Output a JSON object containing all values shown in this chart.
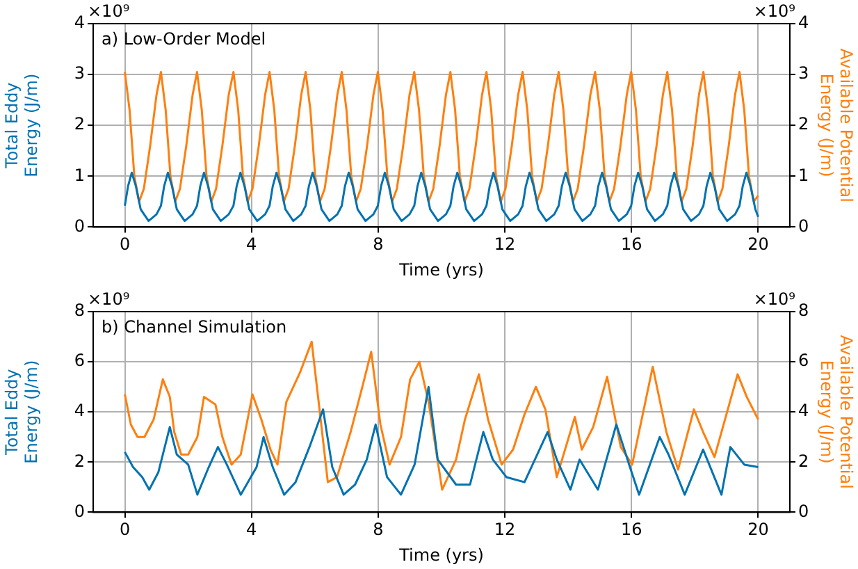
{
  "chart_data": [
    {
      "type": "line",
      "title": "a) Low-Order Model",
      "xlabel": "Time (yrs)",
      "ylabel": "Total Eddy\nEnergy (J/m)",
      "y2label": "Available Potential\nEnergy (J/m)",
      "annotations": [
        "×10⁹",
        "×10⁹"
      ],
      "xlim": [
        -1,
        21
      ],
      "xticks": [
        0,
        4,
        8,
        12,
        16,
        20
      ],
      "ylim": [
        0,
        4
      ],
      "yticks": [
        0,
        1,
        2,
        3,
        4
      ],
      "y2lim": [
        0,
        4
      ],
      "y2ticks": [
        0,
        1,
        2,
        3,
        4
      ],
      "grid": true,
      "legend": false,
      "series": [
        {
          "color": "#0072b2",
          "axis": "y",
          "x": [
            0,
            0.1,
            0.22,
            0.35,
            0.5,
            0.75,
            1.0,
            1.14,
            1.24,
            1.36,
            1.49,
            1.64,
            1.89,
            2.14,
            2.28,
            2.38,
            2.5,
            2.63,
            2.78,
            3.03,
            3.28,
            3.43,
            3.53,
            3.65,
            3.78,
            3.93,
            4.18,
            4.43,
            4.57,
            4.67,
            4.79,
            4.92,
            5.07,
            5.32,
            5.57,
            5.71,
            5.81,
            5.93,
            6.06,
            6.21,
            6.46,
            6.71,
            6.85,
            6.95,
            7.07,
            7.2,
            7.35,
            7.6,
            7.85,
            7.99,
            8.09,
            8.21,
            8.34,
            8.49,
            8.74,
            8.99,
            9.14,
            9.24,
            9.36,
            9.49,
            9.64,
            9.89,
            10.14,
            10.28,
            10.38,
            10.5,
            10.63,
            10.78,
            11.03,
            11.28,
            11.42,
            11.52,
            11.64,
            11.77,
            11.92,
            12.17,
            12.42,
            12.56,
            12.66,
            12.78,
            12.91,
            13.06,
            13.31,
            13.56,
            13.7,
            13.8,
            13.92,
            14.05,
            14.2,
            14.45,
            14.7,
            14.85,
            14.95,
            15.07,
            15.2,
            15.35,
            15.6,
            15.85,
            15.99,
            16.09,
            16.21,
            16.34,
            16.49,
            16.74,
            16.99,
            17.13,
            17.23,
            17.35,
            17.48,
            17.63,
            17.88,
            18.13,
            18.27,
            18.37,
            18.49,
            18.62,
            18.77,
            19.02,
            19.27,
            19.41,
            19.51,
            19.63,
            19.76,
            19.91,
            20
          ],
          "values": [
            0.42,
            0.8,
            1.07,
            0.8,
            0.35,
            0.12,
            0.25,
            0.42,
            0.8,
            1.07,
            0.8,
            0.35,
            0.12,
            0.25,
            0.42,
            0.8,
            1.07,
            0.8,
            0.35,
            0.12,
            0.25,
            0.42,
            0.8,
            1.07,
            0.8,
            0.35,
            0.12,
            0.25,
            0.42,
            0.8,
            1.07,
            0.8,
            0.35,
            0.12,
            0.25,
            0.42,
            0.8,
            1.07,
            0.8,
            0.35,
            0.12,
            0.25,
            0.42,
            0.8,
            1.07,
            0.8,
            0.35,
            0.12,
            0.25,
            0.42,
            0.8,
            1.07,
            0.8,
            0.35,
            0.12,
            0.25,
            0.42,
            0.8,
            1.07,
            0.8,
            0.35,
            0.12,
            0.25,
            0.42,
            0.8,
            1.07,
            0.8,
            0.35,
            0.12,
            0.25,
            0.42,
            0.8,
            1.07,
            0.8,
            0.35,
            0.12,
            0.25,
            0.42,
            0.8,
            1.07,
            0.8,
            0.35,
            0.12,
            0.25,
            0.42,
            0.8,
            1.07,
            0.8,
            0.35,
            0.12,
            0.25,
            0.42,
            0.8,
            1.07,
            0.8,
            0.35,
            0.12,
            0.25,
            0.42,
            0.8,
            1.07,
            0.8,
            0.35,
            0.12,
            0.25,
            0.42,
            0.8,
            1.07,
            0.8,
            0.35,
            0.12,
            0.25,
            0.42,
            0.8,
            1.07,
            0.8,
            0.35,
            0.12,
            0.25,
            0.42,
            0.8,
            1.07,
            0.8,
            0.35,
            0.2
          ]
        },
        {
          "color": "#ff7f0e",
          "axis": "y2",
          "x": [
            0,
            0.15,
            0.3,
            0.45,
            0.6,
            0.8,
            1.0,
            1.14,
            1.29,
            1.44,
            1.59,
            1.74,
            1.94,
            2.14,
            2.28,
            2.43,
            2.58,
            2.73,
            2.88,
            3.08,
            3.28,
            3.43,
            3.58,
            3.73,
            3.88,
            4.03,
            4.23,
            4.43,
            4.57,
            4.72,
            4.87,
            5.02,
            5.17,
            5.37,
            5.57,
            5.71,
            5.86,
            6.01,
            6.16,
            6.31,
            6.51,
            6.71,
            6.85,
            7.0,
            7.15,
            7.3,
            7.45,
            7.65,
            7.85,
            7.99,
            8.14,
            8.29,
            8.44,
            8.59,
            8.79,
            8.99,
            9.14,
            9.29,
            9.44,
            9.59,
            9.74,
            9.94,
            10.14,
            10.28,
            10.43,
            10.58,
            10.73,
            10.88,
            11.08,
            11.28,
            11.42,
            11.57,
            11.72,
            11.87,
            12.02,
            12.22,
            12.42,
            12.56,
            12.71,
            12.86,
            13.01,
            13.16,
            13.36,
            13.56,
            13.7,
            13.85,
            14.0,
            14.15,
            14.3,
            14.5,
            14.7,
            14.85,
            15.0,
            15.15,
            15.3,
            15.45,
            15.65,
            15.85,
            15.99,
            16.14,
            16.29,
            16.44,
            16.59,
            16.79,
            16.99,
            17.13,
            17.28,
            17.43,
            17.58,
            17.73,
            17.93,
            18.13,
            18.27,
            18.42,
            18.57,
            18.72,
            18.87,
            19.07,
            19.27,
            19.41,
            19.56,
            19.71,
            19.86,
            20
          ],
          "values": [
            3.05,
            2.3,
            1.0,
            0.5,
            0.75,
            1.6,
            2.6,
            3.05,
            2.3,
            1.0,
            0.5,
            0.75,
            1.6,
            2.6,
            3.05,
            2.3,
            1.0,
            0.5,
            0.75,
            1.6,
            2.6,
            3.05,
            2.3,
            1.0,
            0.5,
            0.75,
            1.6,
            2.6,
            3.05,
            2.3,
            1.0,
            0.5,
            0.75,
            1.6,
            2.6,
            3.05,
            2.3,
            1.0,
            0.5,
            0.75,
            1.6,
            2.6,
            3.05,
            2.3,
            1.0,
            0.5,
            0.75,
            1.6,
            2.6,
            3.05,
            2.3,
            1.0,
            0.5,
            0.75,
            1.6,
            2.6,
            3.05,
            2.3,
            1.0,
            0.5,
            0.75,
            1.6,
            2.6,
            3.05,
            2.3,
            1.0,
            0.5,
            0.75,
            1.6,
            2.6,
            3.05,
            2.3,
            1.0,
            0.5,
            0.75,
            1.6,
            2.6,
            3.05,
            2.3,
            1.0,
            0.5,
            0.75,
            1.6,
            2.6,
            3.05,
            2.3,
            1.0,
            0.5,
            0.75,
            1.6,
            2.6,
            3.05,
            2.3,
            1.0,
            0.5,
            0.75,
            1.6,
            2.6,
            3.05,
            2.3,
            1.0,
            0.5,
            0.75,
            1.6,
            2.6,
            3.05,
            2.3,
            1.0,
            0.5,
            0.75,
            1.6,
            2.6,
            3.05,
            2.3,
            1.0,
            0.5,
            0.75,
            1.6,
            2.6,
            3.05,
            2.3,
            1.0,
            0.5,
            0.62
          ]
        }
      ]
    },
    {
      "type": "line",
      "title": "b) Channel Simulation",
      "xlabel": "Time (yrs)",
      "ylabel": "Total Eddy\nEnergy (J/m)",
      "y2label": "Available Potential\nEnergy (J/m)",
      "annotations": [
        "×10⁹",
        "×10⁹"
      ],
      "xlim": [
        -1,
        21
      ],
      "xticks": [
        0,
        4,
        8,
        12,
        16,
        20
      ],
      "ylim": [
        0,
        8
      ],
      "yticks": [
        0,
        2,
        4,
        6,
        8
      ],
      "y2lim": [
        0,
        8
      ],
      "y2ticks": [
        0,
        2,
        4,
        6,
        8
      ],
      "grid": true,
      "legend": false,
      "series": [
        {
          "color": "#0072b2",
          "axis": "y",
          "x": [
            0,
            0.26,
            0.55,
            0.77,
            1.06,
            1.42,
            1.64,
            2.0,
            2.29,
            2.65,
            2.94,
            3.22,
            3.66,
            4.16,
            4.38,
            4.67,
            5.03,
            5.39,
            5.83,
            6.26,
            6.55,
            6.91,
            7.27,
            7.64,
            7.92,
            8.28,
            8.72,
            9.15,
            9.59,
            9.88,
            10.46,
            10.9,
            11.32,
            11.62,
            12.05,
            12.62,
            13.35,
            13.64,
            14.07,
            14.36,
            14.94,
            15.52,
            15.95,
            16.24,
            16.89,
            17.17,
            17.68,
            18.26,
            18.84,
            19.12,
            19.56,
            20
          ],
          "values": [
            2.4,
            1.8,
            1.4,
            0.9,
            1.6,
            3.4,
            2.3,
            1.9,
            0.7,
            1.8,
            2.6,
            1.9,
            0.7,
            1.8,
            3.0,
            1.8,
            0.7,
            1.2,
            2.6,
            4.1,
            1.8,
            0.7,
            1.1,
            2.1,
            3.5,
            1.4,
            0.7,
            1.9,
            5.0,
            2.1,
            1.1,
            1.1,
            3.2,
            2.1,
            1.4,
            1.2,
            3.2,
            2.1,
            0.9,
            2.1,
            0.9,
            3.5,
            1.8,
            0.7,
            3.0,
            2.3,
            0.7,
            2.5,
            0.7,
            2.6,
            1.9,
            1.8
          ]
        },
        {
          "color": "#ff7f0e",
          "axis": "y2",
          "x": [
            0,
            0.19,
            0.4,
            0.62,
            0.91,
            1.2,
            1.42,
            1.56,
            1.78,
            2.0,
            2.29,
            2.5,
            2.86,
            3.08,
            3.37,
            3.66,
            4.03,
            4.31,
            4.6,
            4.82,
            5.1,
            5.54,
            5.9,
            6.12,
            6.41,
            6.7,
            7.13,
            7.56,
            7.78,
            8.07,
            8.36,
            8.72,
            9.01,
            9.3,
            9.59,
            10.02,
            10.46,
            10.74,
            11.18,
            11.47,
            11.9,
            12.26,
            12.62,
            12.98,
            13.28,
            13.64,
            14.21,
            14.43,
            14.79,
            15.23,
            15.66,
            16.02,
            16.67,
            17.1,
            17.47,
            17.97,
            18.26,
            18.62,
            19.35,
            19.64,
            20
          ],
          "values": [
            4.7,
            3.5,
            3.0,
            3.0,
            3.7,
            5.3,
            4.6,
            3.2,
            2.3,
            2.3,
            3.0,
            4.6,
            4.3,
            3.0,
            1.9,
            2.3,
            4.7,
            3.7,
            2.5,
            1.9,
            4.4,
            5.6,
            6.8,
            4.4,
            1.2,
            1.4,
            3.2,
            5.3,
            6.4,
            3.5,
            1.9,
            3.0,
            5.3,
            6.0,
            4.4,
            0.9,
            2.1,
            3.7,
            5.5,
            3.7,
            1.9,
            2.5,
            3.9,
            5.0,
            4.1,
            1.4,
            3.8,
            2.5,
            3.4,
            5.4,
            2.6,
            1.9,
            5.8,
            3.2,
            1.7,
            4.1,
            3.2,
            2.2,
            5.5,
            4.6,
            3.7
          ]
        }
      ]
    }
  ]
}
